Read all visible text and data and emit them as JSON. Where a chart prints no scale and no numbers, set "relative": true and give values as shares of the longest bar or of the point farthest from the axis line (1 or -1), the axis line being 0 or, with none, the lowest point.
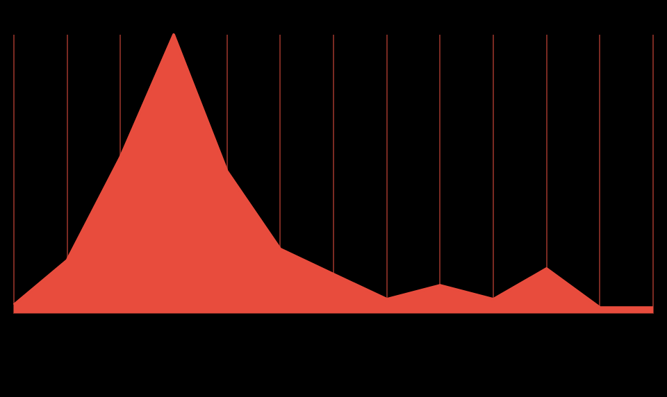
{
  "chart_data": {
    "type": "area",
    "relative": true,
    "categories": [
      null,
      null,
      null,
      null,
      null,
      null,
      null,
      null,
      null,
      null,
      null,
      null,
      null
    ],
    "series": [
      {
        "color": "#e84c3d",
        "values": [
          0.03,
          0.19,
          0.56,
          1,
          0.51,
          0.23,
          0.14,
          0.05,
          0.1,
          0.05,
          0.16,
          0.02,
          0.02
        ]
      }
    ],
    "grid": "x",
    "marker": "none"
  }
}
